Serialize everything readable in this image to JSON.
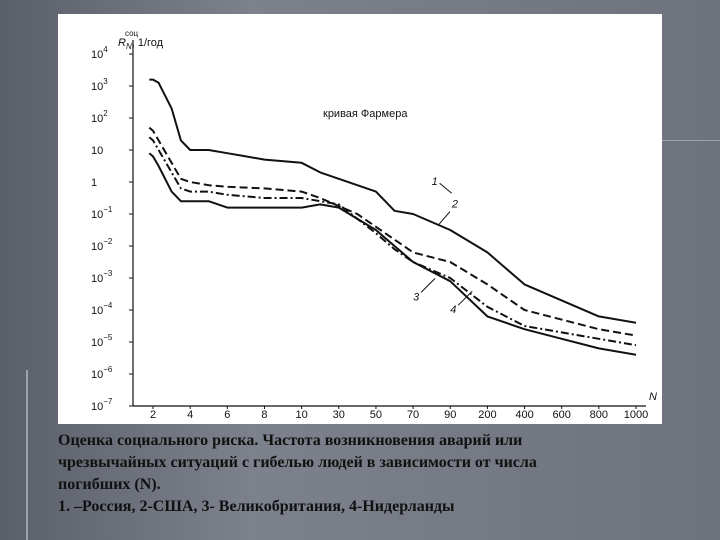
{
  "chart_data": {
    "type": "line",
    "title": "",
    "ylabel_main": "R",
    "ylabel_sub": "N",
    "ylabel_sup": "соц",
    "ylabel_unit": ", 1/год",
    "xlabel": "N",
    "x_ticks": [
      "2",
      "4",
      "6",
      "8",
      "10",
      "30",
      "50",
      "70",
      "90",
      "200",
      "400",
      "600",
      "800",
      "1000"
    ],
    "y_ticks": [
      {
        "base": "10",
        "exp": "4"
      },
      {
        "base": "10",
        "exp": "3"
      },
      {
        "base": "10",
        "exp": "2"
      },
      {
        "base": "10",
        "exp": ""
      },
      {
        "base": "1",
        "exp": ""
      },
      {
        "base": "10",
        "exp": "−1"
      },
      {
        "base": "10",
        "exp": "−2"
      },
      {
        "base": "10",
        "exp": "−3"
      },
      {
        "base": "10",
        "exp": "−4"
      },
      {
        "base": "10",
        "exp": "−5"
      },
      {
        "base": "10",
        "exp": "−6"
      },
      {
        "base": "10",
        "exp": "−7"
      }
    ],
    "ylim_log10": [
      -7,
      4
    ],
    "annotation": "кривая Фармера",
    "series": [
      {
        "name": "1",
        "dash": "solid",
        "x": [
          1.8,
          2,
          2.3,
          3,
          3.5,
          4,
          5,
          6,
          7,
          8,
          10,
          20,
          30,
          50,
          60,
          70,
          90,
          200,
          400,
          800,
          1000
        ],
        "log10y": [
          3.2,
          3.2,
          3.1,
          2.3,
          1.3,
          1.0,
          1.0,
          0.9,
          0.8,
          0.7,
          0.6,
          0.3,
          0.1,
          -0.3,
          -0.9,
          -1.0,
          -1.5,
          -2.2,
          -3.2,
          -4.2,
          -4.4
        ]
      },
      {
        "name": "2",
        "dash": "dashed",
        "x": [
          1.8,
          2,
          2.3,
          3,
          3.5,
          4,
          5,
          6,
          8,
          10,
          20,
          40,
          50,
          60,
          70,
          90,
          200,
          400,
          800,
          1000
        ],
        "log10y": [
          1.7,
          1.6,
          1.3,
          0.6,
          0.1,
          0.0,
          -0.1,
          -0.15,
          -0.2,
          -0.3,
          -0.5,
          -1.0,
          -1.4,
          -1.8,
          -2.2,
          -2.5,
          -3.2,
          -4.0,
          -4.6,
          -4.8
        ]
      },
      {
        "name": "3",
        "dash": "solid",
        "x": [
          1.8,
          2,
          2.3,
          3,
          3.5,
          4,
          5,
          6,
          10,
          20,
          30,
          50,
          60,
          70,
          90,
          200,
          400,
          600,
          800,
          1000
        ],
        "log10y": [
          0.9,
          0.8,
          0.5,
          -0.3,
          -0.6,
          -0.6,
          -0.6,
          -0.8,
          -0.8,
          -0.7,
          -0.8,
          -1.5,
          -2.0,
          -2.5,
          -3.1,
          -4.2,
          -4.6,
          -4.9,
          -5.2,
          -5.4
        ]
      },
      {
        "name": "4",
        "dash": "dashdot",
        "x": [
          1.8,
          2,
          2.3,
          3,
          3.5,
          4,
          5,
          6,
          8,
          10,
          20,
          30,
          50,
          60,
          70,
          90,
          200,
          400,
          800,
          1000
        ],
        "log10y": [
          1.4,
          1.3,
          1.0,
          0.3,
          -0.2,
          -0.3,
          -0.3,
          -0.4,
          -0.5,
          -0.5,
          -0.6,
          -0.7,
          -1.6,
          -2.1,
          -2.5,
          -3.0,
          -3.9,
          -4.5,
          -4.9,
          -5.1
        ]
      }
    ],
    "curve_labels": [
      {
        "text": "1",
        "x": 80,
        "log10y": -0.1
      },
      {
        "text": "2",
        "x": 95,
        "log10y": -0.8
      },
      {
        "text": "3",
        "x": 70,
        "log10y": -3.7
      },
      {
        "text": "4",
        "x": 90,
        "log10y": -4.1
      }
    ]
  },
  "caption": {
    "lines": [
      "Оценка социального риска. Частота возникновения аварий или",
      "чрезвычайных ситуаций с гибелью людей в зависимости от числа",
      "погибших (N).",
      "1. –Россия, 2-США, 3- Великобритания, 4-Нидерланды"
    ]
  }
}
